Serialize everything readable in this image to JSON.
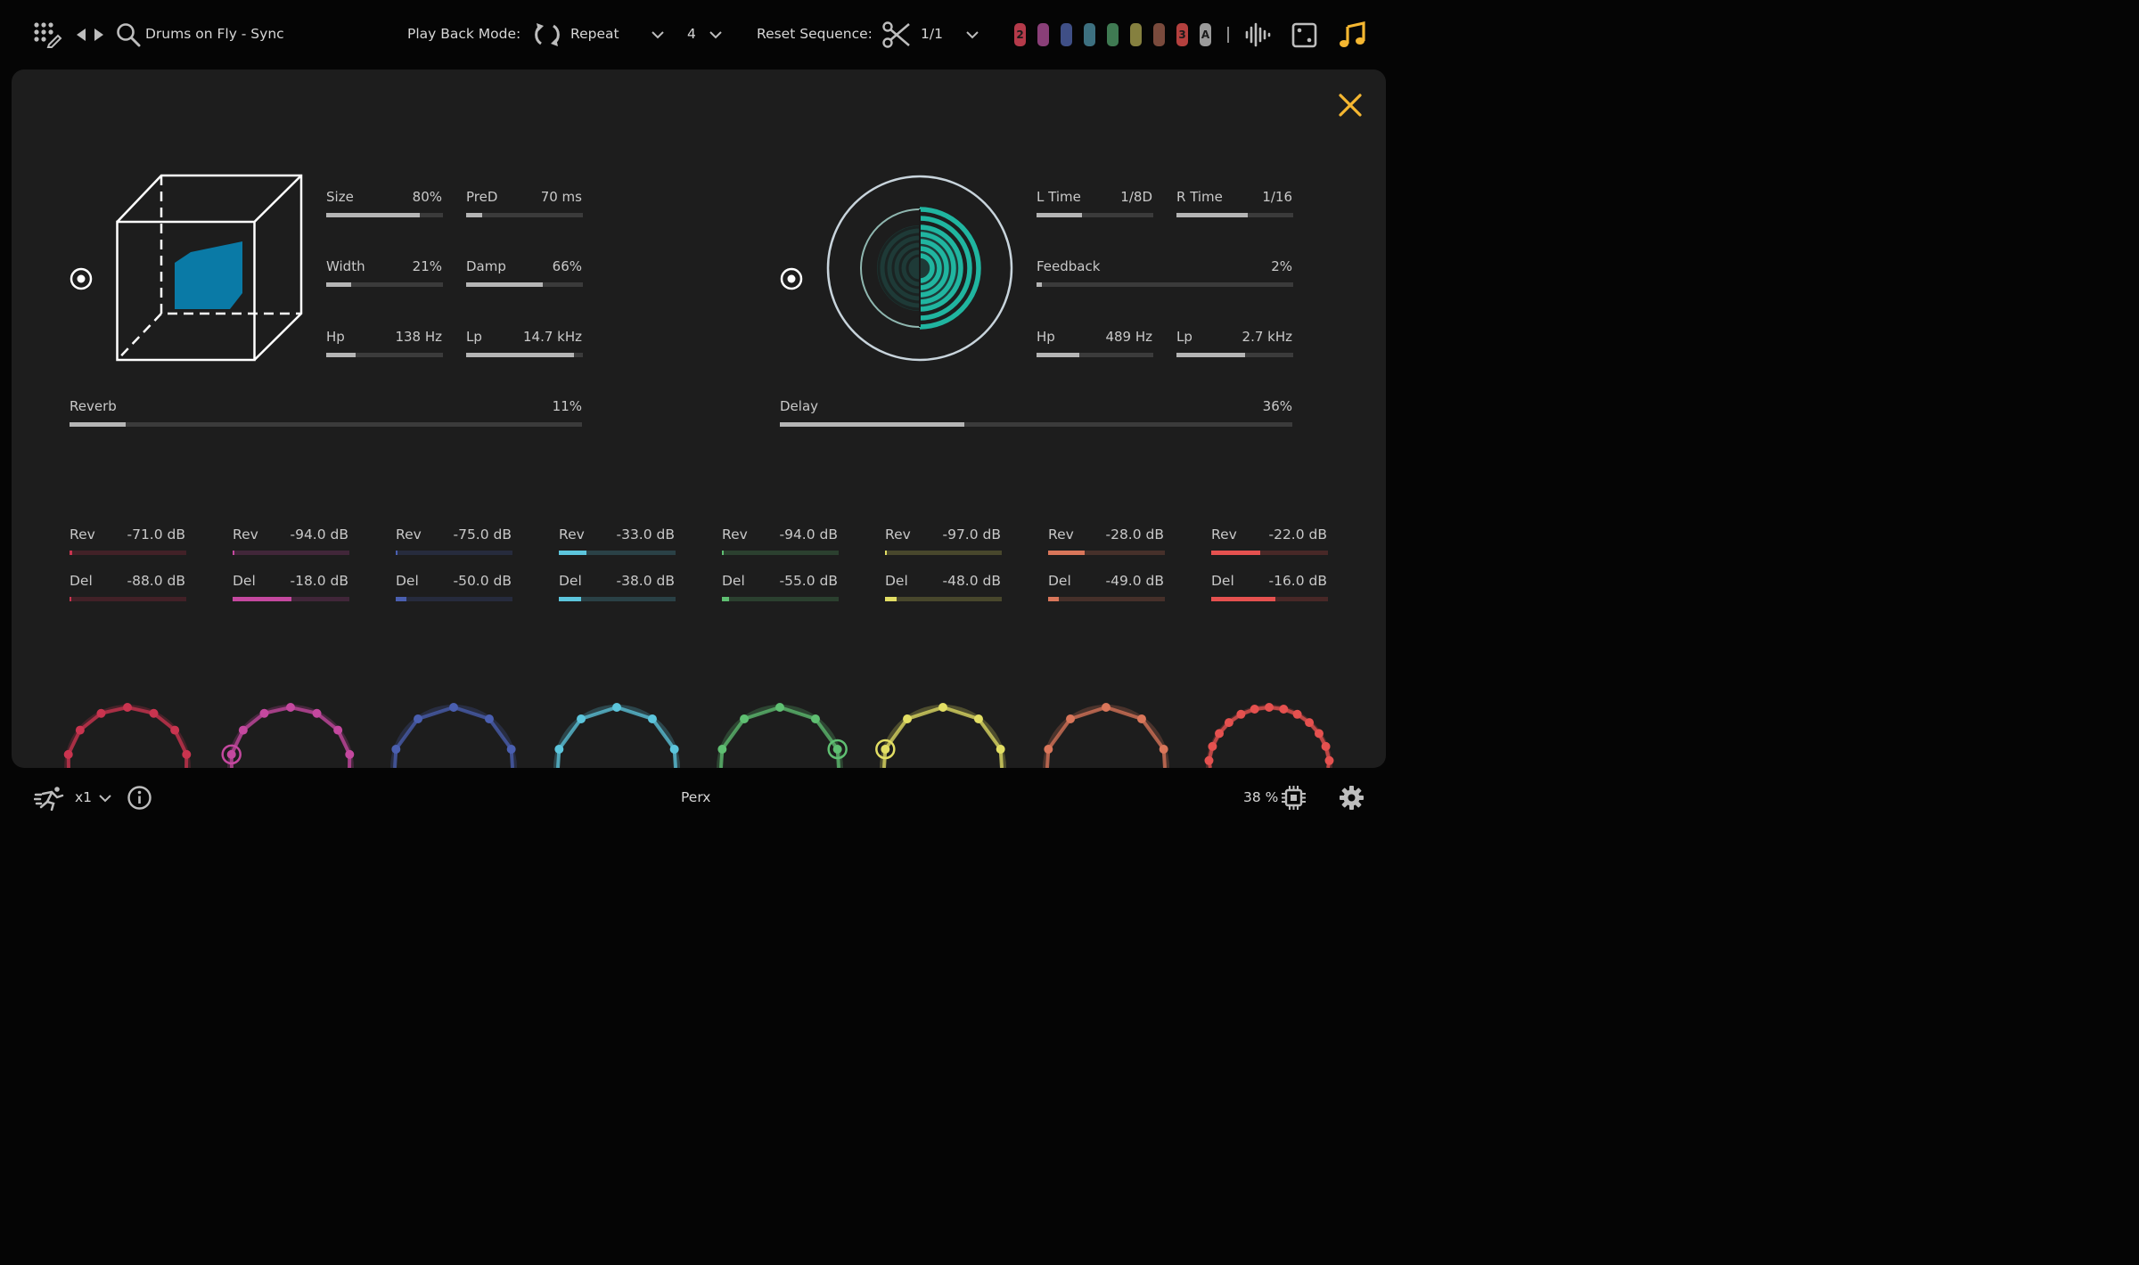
{
  "header": {
    "preset_name": "Drums on Fly - Sync",
    "playback_mode_label": "Play Back Mode:",
    "playback_mode_value": "Repeat",
    "steps_value": "4",
    "reset_sequence_label": "Reset Sequence:",
    "reset_sequence_value": "1/1",
    "pills": [
      {
        "text": "2",
        "color": "#b53a4a"
      },
      {
        "text": "",
        "color": "#8a3f78"
      },
      {
        "text": "",
        "color": "#3f4f86"
      },
      {
        "text": "",
        "color": "#3d7080"
      },
      {
        "text": "",
        "color": "#3f7a52"
      },
      {
        "text": "",
        "color": "#85803f"
      },
      {
        "text": "",
        "color": "#7a4a3c"
      },
      {
        "text": "3",
        "color": "#b4403e"
      },
      {
        "text": "A",
        "color": "#9a9a9a"
      }
    ],
    "accent_color": "#f5b731"
  },
  "reverb": {
    "params": [
      {
        "label": "Size",
        "value": "80%",
        "fill": 0.8
      },
      {
        "label": "PreD",
        "value": "70 ms",
        "fill": 0.14
      },
      {
        "label": "Width",
        "value": "21%",
        "fill": 0.21
      },
      {
        "label": "Damp",
        "value": "66%",
        "fill": 0.66
      },
      {
        "label": "Hp",
        "value": "138 Hz",
        "fill": 0.25
      },
      {
        "label": "Lp",
        "value": "14.7 kHz",
        "fill": 0.92
      }
    ],
    "amount_label": "Reverb",
    "amount_value": "11%",
    "amount_fill": 0.11,
    "cube_color": "#0a7aa6"
  },
  "delay": {
    "params": [
      {
        "label": "L Time",
        "value": "1/8D",
        "fill": 0.39
      },
      {
        "label": "R Time",
        "value": "1/16",
        "fill": 0.61
      },
      {
        "label": "Feedback",
        "value": "2%",
        "fill": 0.02
      },
      {
        "label": "Hp",
        "value": "489 Hz",
        "fill": 0.37
      },
      {
        "label": "Lp",
        "value": "2.7 kHz",
        "fill": 0.59
      }
    ],
    "amount_label": "Delay",
    "amount_value": "36%",
    "amount_fill": 0.36,
    "ring_color": "#20b5a0"
  },
  "channels": [
    {
      "color": "#c9344f",
      "rev_label": "Rev",
      "rev_value": "-71.0 dB",
      "rev_fill": 0.02,
      "del_label": "Del",
      "del_value": "-88.0 dB",
      "del_fill": 0.0
    },
    {
      "color": "#c4489f",
      "rev_label": "Rev",
      "rev_value": "-94.0 dB",
      "rev_fill": 0.0,
      "del_label": "Del",
      "del_value": "-18.0 dB",
      "del_fill": 0.5
    },
    {
      "color": "#4a5fb0",
      "rev_label": "Rev",
      "rev_value": "-75.0 dB",
      "rev_fill": 0.01,
      "del_label": "Del",
      "del_value": "-50.0 dB",
      "del_fill": 0.09
    },
    {
      "color": "#5cc5dc",
      "rev_label": "Rev",
      "rev_value": "-33.0 dB",
      "rev_fill": 0.24,
      "del_label": "Del",
      "del_value": "-38.0 dB",
      "del_fill": 0.19
    },
    {
      "color": "#5fbf72",
      "rev_label": "Rev",
      "rev_value": "-94.0 dB",
      "rev_fill": 0.0,
      "del_label": "Del",
      "del_value": "-55.0 dB",
      "del_fill": 0.06
    },
    {
      "color": "#e2de64",
      "rev_label": "Rev",
      "rev_value": "-97.0 dB",
      "rev_fill": 0.0,
      "del_label": "Del",
      "del_value": "-48.0 dB",
      "del_fill": 0.1
    },
    {
      "color": "#d9765a",
      "rev_label": "Rev",
      "rev_value": "-28.0 dB",
      "rev_fill": 0.31,
      "del_label": "Del",
      "del_value": "-49.0 dB",
      "del_fill": 0.09
    },
    {
      "color": "#e5514f",
      "rev_label": "Rev",
      "rev_value": "-22.0 dB",
      "rev_fill": 0.42,
      "del_label": "Del",
      "del_value": "-16.0 dB",
      "del_fill": 0.55
    }
  ],
  "footer": {
    "speed_value": "x1",
    "mode_name": "Perx",
    "cpu_value": "38 %"
  }
}
